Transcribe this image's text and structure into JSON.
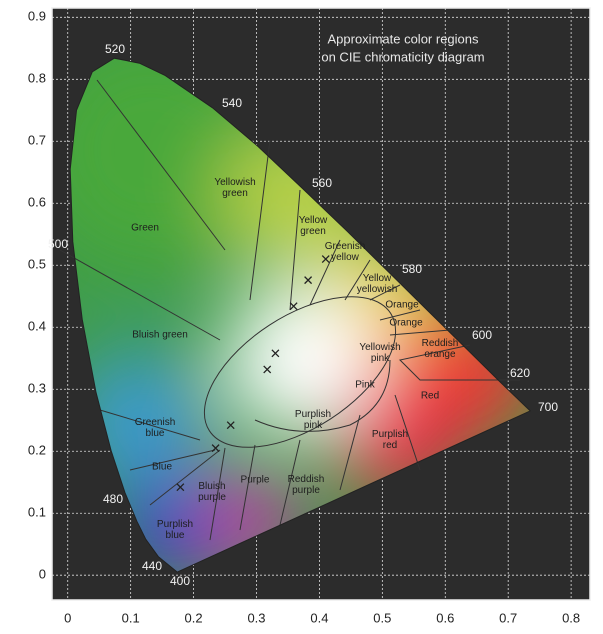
{
  "chart_data": {
    "type": "scatter",
    "title": [
      "Approximate color regions",
      "on CIE chromaticity diagram"
    ],
    "x": [
      0.41,
      0.382,
      0.359,
      0.33,
      0.317,
      0.259,
      0.235,
      0.179
    ],
    "values": [
      0.51,
      0.476,
      0.434,
      0.358,
      0.332,
      0.242,
      0.205,
      0.142
    ],
    "xlim": [
      -0.025,
      0.83
    ],
    "ylim": [
      -0.04,
      0.915
    ],
    "xticks": [
      0,
      0.1,
      0.2,
      0.3,
      0.4,
      0.5,
      0.6,
      0.7,
      0.8
    ],
    "yticks": [
      0,
      0.1,
      0.2,
      0.3,
      0.4,
      0.5,
      0.6,
      0.7,
      0.8,
      0.9
    ],
    "grid": true,
    "wavelength_labels": [
      "520",
      "540",
      "560",
      "580",
      "600",
      "620",
      "700",
      "500",
      "480",
      "440",
      "400"
    ],
    "region_labels": [
      [
        "Green"
      ],
      [
        "Yellowish",
        "green"
      ],
      [
        "Yellow",
        "green"
      ],
      [
        "Greenish",
        "yellow"
      ],
      [
        "Yellow",
        "yellowish"
      ],
      [
        "Orange"
      ],
      [
        "Orange"
      ],
      [
        "Reddish",
        "orange"
      ],
      [
        "Bluish green"
      ],
      [
        "Yellowish",
        "pink"
      ],
      [
        "Pink"
      ],
      [
        "Red"
      ],
      [
        "Purplish",
        "pink"
      ],
      [
        "Purplish",
        "red"
      ],
      [
        "Greenish",
        "blue"
      ],
      [
        "Blue"
      ],
      [
        "Bluish",
        "purple"
      ],
      [
        "Purple"
      ],
      [
        "Reddish",
        "purple"
      ],
      [
        "Purplish",
        "blue"
      ]
    ]
  }
}
